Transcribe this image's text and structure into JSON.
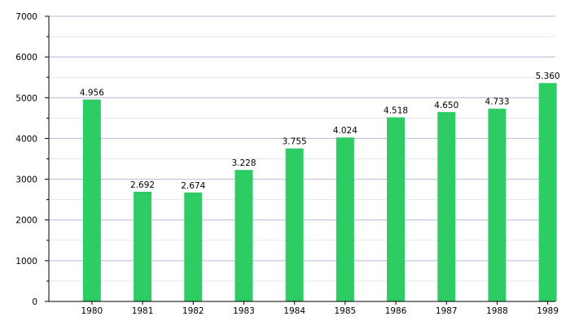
{
  "chart_data": {
    "type": "bar",
    "title": "",
    "xlabel": "",
    "ylabel": "",
    "categories": [
      "1980",
      "1981",
      "1982",
      "1983",
      "1984",
      "1985",
      "1986",
      "1987",
      "1988",
      "1989"
    ],
    "values": [
      4956,
      2692,
      2674,
      3228,
      3755,
      4024,
      4518,
      4650,
      4733,
      5360
    ],
    "value_labels": [
      "4.956",
      "2.692",
      "2.674",
      "3.228",
      "3.755",
      "4.024",
      "4.518",
      "4.650",
      "4.733",
      "5.360"
    ],
    "y_ticks": [
      0,
      1000,
      2000,
      3000,
      4000,
      5000,
      6000,
      7000
    ],
    "y_tick_labels": [
      "0",
      "1000",
      "2000",
      "3000",
      "4000",
      "5000",
      "6000",
      "7000"
    ],
    "ylim": [
      0,
      7000
    ],
    "grid": true,
    "legend": "none",
    "colors": {
      "bar": "#2ecc64",
      "grid_major": "#b9b9d9",
      "grid_minor": "#e6e6f0",
      "axis": "#000000"
    }
  }
}
